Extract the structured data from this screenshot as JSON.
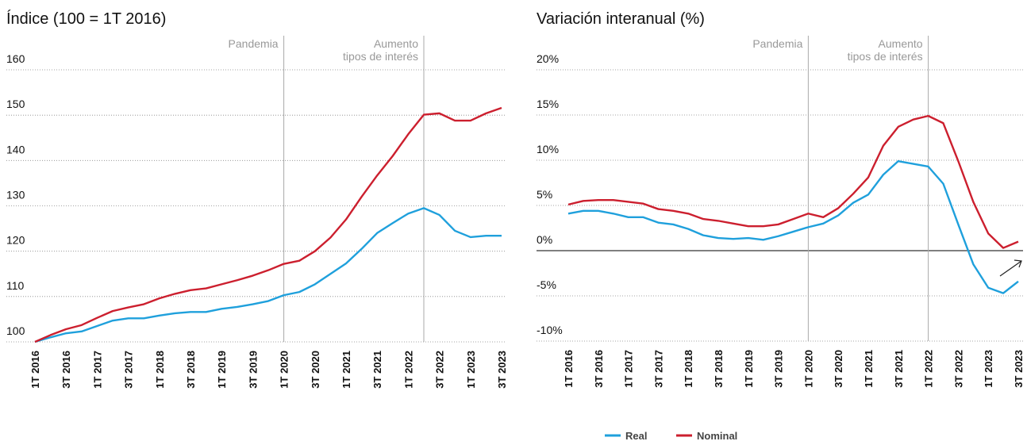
{
  "chart_data": [
    {
      "type": "line",
      "title": "Índice (100 = 1T 2016)",
      "categories": [
        "1T 2016",
        null,
        "3T 2016",
        null,
        "1T 2017",
        null,
        "3T 2017",
        null,
        "1T 2018",
        null,
        "3T 2018",
        null,
        "1T 2019",
        null,
        "3T 2019",
        null,
        "1T 2020",
        null,
        "3T 2020",
        null,
        "1T 2021",
        null,
        "3T 2021",
        null,
        "1T 2022",
        null,
        "3T 2022",
        null,
        "1T 2023",
        null,
        "3T 2023"
      ],
      "series": [
        {
          "name": "Real",
          "color": "#1fa0dc",
          "values": [
            100,
            101,
            101.9,
            102.3,
            103.5,
            104.7,
            105.2,
            105.2,
            105.8,
            106.3,
            106.6,
            106.6,
            107.3,
            107.7,
            108.3,
            109,
            110.3,
            111,
            112.7,
            115,
            117.3,
            120.5,
            124,
            126.2,
            128.3,
            129.5,
            128,
            124.5,
            123.1,
            123.4,
            123.4
          ]
        },
        {
          "name": "Nominal",
          "color": "#cc1f2e",
          "values": [
            100,
            101.5,
            102.8,
            103.7,
            105.3,
            106.8,
            107.6,
            108.3,
            109.6,
            110.6,
            111.4,
            111.8,
            112.7,
            113.6,
            114.6,
            115.8,
            117.2,
            117.9,
            120,
            123,
            127,
            132,
            136.7,
            141,
            145.8,
            150.1,
            150.4,
            148.8,
            148.8,
            150.4,
            151.6
          ]
        }
      ],
      "ylim": [
        100,
        160
      ],
      "yticks": [
        100,
        110,
        120,
        130,
        140,
        150,
        160
      ],
      "grid": true,
      "annotations": [
        {
          "text": [
            "Pandemia"
          ]
        },
        {
          "text": [
            "Aumento",
            "tipos de interés"
          ]
        }
      ]
    },
    {
      "type": "line",
      "title": "Variación interanual (%)",
      "categories": [
        "1T 2016",
        null,
        "3T 2016",
        null,
        "1T 2017",
        null,
        "3T 2017",
        null,
        "1T 2018",
        null,
        "3T 2018",
        null,
        "1T 2019",
        null,
        "3T 2019",
        null,
        "1T 2020",
        null,
        "3T 2020",
        null,
        "1T 2021",
        null,
        "3T 2021",
        null,
        "1T 2022",
        null,
        "3T 2022",
        null,
        "1T 2023",
        null,
        "3T 2023"
      ],
      "series": [
        {
          "name": "Real",
          "color": "#1fa0dc",
          "values": [
            4.1,
            4.4,
            4.4,
            4.1,
            3.7,
            3.7,
            3.1,
            2.9,
            2.4,
            1.7,
            1.4,
            1.3,
            1.4,
            1.2,
            1.6,
            2.1,
            2.6,
            3.0,
            3.9,
            5.3,
            6.2,
            8.4,
            9.9,
            9.6,
            9.3,
            7.4,
            2.9,
            -1.5,
            -4.1,
            -4.7,
            -3.4
          ]
        },
        {
          "name": "Nominal",
          "color": "#cc1f2e",
          "values": [
            5.1,
            5.5,
            5.6,
            5.6,
            5.4,
            5.2,
            4.6,
            4.4,
            4.1,
            3.5,
            3.3,
            3.0,
            2.7,
            2.7,
            2.9,
            3.5,
            4.1,
            3.7,
            4.7,
            6.3,
            8.1,
            11.6,
            13.7,
            14.5,
            14.9,
            14.1,
            9.9,
            5.4,
            1.9,
            0.3,
            1.0
          ]
        }
      ],
      "ylim": [
        -10,
        20
      ],
      "yticks": [
        {
          "value": -10,
          "label": "-10%"
        },
        {
          "value": -5,
          "label": "-5%"
        },
        {
          "value": 0,
          "label": "0%"
        },
        {
          "value": 5,
          "label": "5%"
        },
        {
          "value": 10,
          "label": "10%"
        },
        {
          "value": 15,
          "label": "15%"
        },
        {
          "value": 20,
          "label": "20%"
        }
      ],
      "grid": true,
      "annotations": [
        {
          "text": [
            "Pandemia"
          ]
        },
        {
          "text": [
            "Aumento",
            "tipos de interés"
          ]
        }
      ]
    }
  ]
}
